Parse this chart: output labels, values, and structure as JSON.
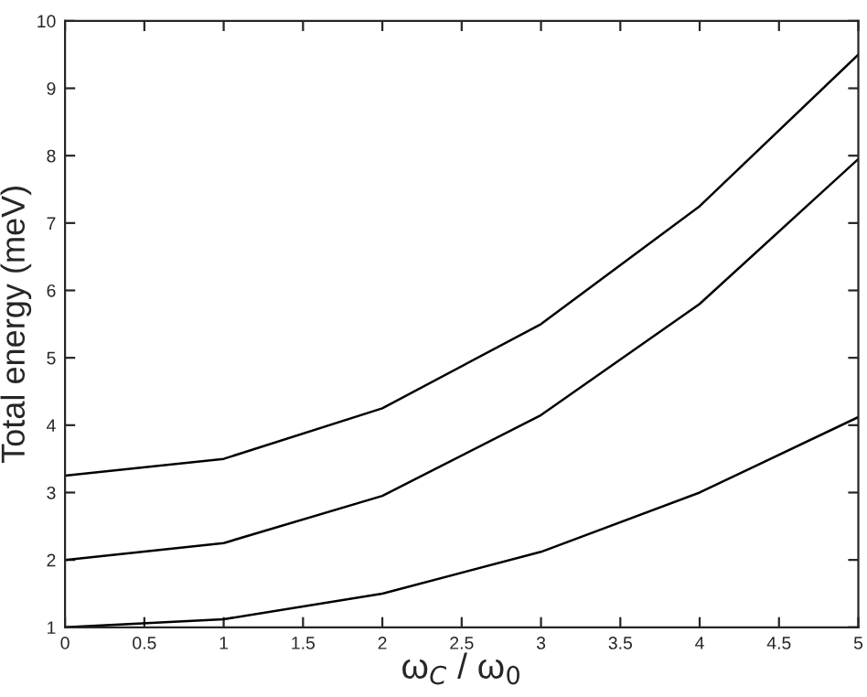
{
  "chart_data": {
    "type": "line",
    "xlabel": "ω$_{C}$ / ω$_{0}$",
    "ylabel": "Total energy (meV)",
    "x": [
      0,
      1,
      2,
      3,
      4,
      5
    ],
    "series": [
      {
        "color": "#000000",
        "values": [
          3.25,
          3.5,
          4.25,
          5.5,
          7.25,
          9.5
        ]
      },
      {
        "color": "#000000",
        "values": [
          2.0,
          2.25,
          2.95,
          4.15,
          5.8,
          7.95
        ]
      },
      {
        "color": "#000000",
        "values": [
          1.0,
          1.12,
          1.5,
          2.12,
          3.0,
          4.12
        ]
      }
    ],
    "xlim": [
      0,
      5
    ],
    "ylim": [
      1,
      10
    ],
    "xticks": [
      0,
      0.5,
      1,
      1.5,
      2,
      2.5,
      3,
      3.5,
      4,
      4.5,
      5
    ],
    "yticks": [
      1,
      2,
      3,
      4,
      5,
      6,
      7,
      8,
      9,
      10
    ],
    "grid": false,
    "marker": "none",
    "line_style": "solid"
  }
}
